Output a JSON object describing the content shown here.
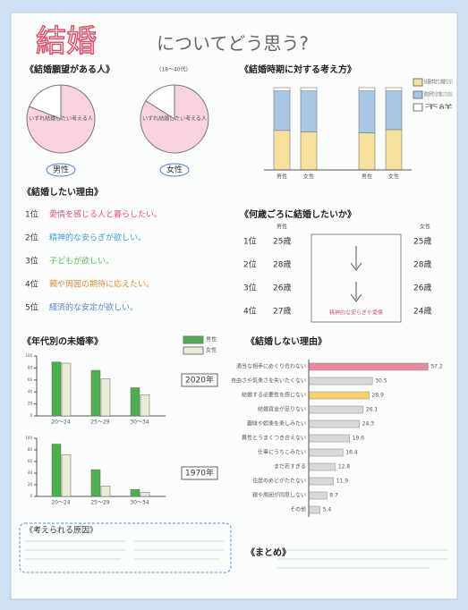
{
  "title": {
    "main": "結婚",
    "rest": "についてどう思う?"
  },
  "desire": {
    "heading": "《結婚願望がある人》",
    "note": "(18〜40代)",
    "slice_label": "いずれ結婚したい考える人",
    "groups": [
      {
        "name": "男性",
        "values": [
          81,
          19
        ]
      },
      {
        "name": "女性",
        "values": [
          84,
          16
        ]
      }
    ]
  },
  "timing": {
    "heading": "《結婚時期に対する考え方》",
    "categories": [
      "男性",
      "女性",
      "男性",
      "女性"
    ],
    "series": [
      {
        "name": "ある程度の年齢までには結婚するつもり",
        "color": "#f5e19c",
        "values": [
          48,
          46,
          45,
          49
        ]
      },
      {
        "name": "理想的な相手が見つかるまで結婚しなくてもかまわない",
        "color": "#a9c8e6",
        "values": [
          48,
          50,
          51,
          47
        ]
      },
      {
        "name": "不詳",
        "color": "#ffffff",
        "values": [
          4,
          4,
          4,
          4
        ]
      }
    ],
    "ylim": [
      0,
      100
    ]
  },
  "reasons": {
    "heading": "《結婚したい理由》",
    "items": [
      {
        "rank": "1位",
        "text": "愛情を感じる人と暮らしたい。"
      },
      {
        "rank": "2位",
        "text": "精神的な安らぎが欲しい。"
      },
      {
        "rank": "3位",
        "text": "子どもが欲しい。"
      },
      {
        "rank": "4位",
        "text": "親や周囲の期待に応えたい。"
      },
      {
        "rank": "5位",
        "text": "経済的な安定が欲しい。"
      }
    ]
  },
  "age": {
    "heading": "《何歳ごろに結婚したいか》",
    "male": "男性",
    "female": "女性",
    "rows": [
      {
        "rank": "1位",
        "male": "25歳",
        "female": "25歳"
      },
      {
        "rank": "2位",
        "male": "28歳",
        "female": "28歳"
      },
      {
        "rank": "3位",
        "male": "26歳",
        "female": "26歳"
      },
      {
        "rank": "4位",
        "male": "27歳",
        "female": "24歳"
      }
    ],
    "note": "精神的な安らぎや愛情"
  },
  "unmarried": {
    "heading": "《年代別の未婚率》",
    "categories": [
      "20〜24",
      "25〜29",
      "30〜34"
    ],
    "legend": [
      {
        "name": "男性",
        "color": "#4caf50"
      },
      {
        "name": "女性",
        "color": "#e8ecd6"
      }
    ],
    "ylim": [
      0,
      100
    ],
    "yticks": [
      0,
      20,
      40,
      60,
      80,
      100
    ],
    "charts": [
      {
        "year": "2020年",
        "values": [
          [
            90,
            76,
            47
          ],
          [
            88,
            62,
            35
          ]
        ]
      },
      {
        "year": "1970年",
        "values": [
          [
            90,
            46,
            12
          ],
          [
            72,
            18,
            7
          ]
        ]
      }
    ]
  },
  "nomarry": {
    "heading": "《結婚しない理由》",
    "xlim": [
      0,
      60
    ],
    "items": [
      {
        "label": "適当な相手にめぐり合わない",
        "value": 57.2,
        "color": "#e78aa0"
      },
      {
        "label": "自由さや気楽さを失いたくない",
        "value": 30.5,
        "color": "#d8d8d8"
      },
      {
        "label": "結婚する必要性を感じない",
        "value": 28.9,
        "color": "#f5d36a"
      },
      {
        "label": "結婚資金が足りない",
        "value": 26.1,
        "color": "#d8d8d8"
      },
      {
        "label": "趣味や娯楽を楽しみたい",
        "value": 24.3,
        "color": "#d8d8d8"
      },
      {
        "label": "異性とうまくつき合えない",
        "value": 19.6,
        "color": "#d8d8d8"
      },
      {
        "label": "仕事にうちこみたい",
        "value": 16.4,
        "color": "#d8d8d8"
      },
      {
        "label": "まだ若すぎる",
        "value": 12.8,
        "color": "#d8d8d8"
      },
      {
        "label": "住居のめどがたたない",
        "value": 11.9,
        "color": "#d8d8d8"
      },
      {
        "label": "親や周囲が同意しない",
        "value": 8.7,
        "color": "#d8d8d8"
      },
      {
        "label": "その他",
        "value": 5.4,
        "color": "#d8d8d8"
      }
    ]
  },
  "causes": {
    "heading": "《考えられる原因》"
  },
  "summary": {
    "heading": "《まとめ》"
  }
}
